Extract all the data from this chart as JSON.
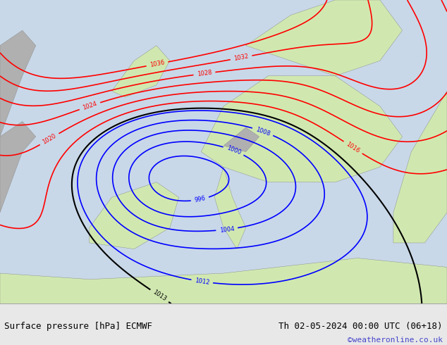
{
  "title_left": "Surface pressure [hPa] ECMWF",
  "title_right": "Th 02-05-2024 00:00 UTC (06+18)",
  "copyright": "©weatheronline.co.uk",
  "background_color": "#e8e8e8",
  "map_bg_color": "#d0e8b0",
  "sea_color": "#c8d8e8",
  "land_color": "#d0e8b0",
  "gray_color": "#a0a0a0",
  "bottom_bar_color": "#f0f0f0",
  "figsize": [
    6.34,
    4.9
  ],
  "dpi": 100,
  "bottom_text_color": "#000000",
  "copyright_color": "#4444cc",
  "font_size_bottom": 9,
  "font_size_copyright": 8
}
